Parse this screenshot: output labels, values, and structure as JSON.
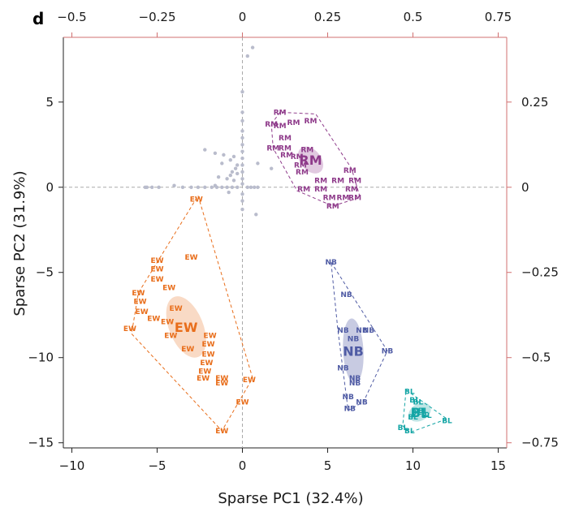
{
  "panel_label": "d",
  "chart_data": {
    "type": "scatter",
    "xlabel": "Sparse PC1 (32.4%)",
    "ylabel": "Sparse PC2 (31.9%)",
    "xlim": [
      -10.5,
      15.5
    ],
    "ylim": [
      -15.3,
      8.8
    ],
    "x_ticks": [
      -10,
      -5,
      0,
      5,
      10,
      15
    ],
    "y_ticks": [
      -15,
      -10,
      -5,
      0,
      5
    ],
    "x_tick_labels": [
      "−10",
      "−5",
      "0",
      "5",
      "10",
      "15"
    ],
    "y_tick_labels": [
      "−15",
      "−10",
      "−5",
      "0",
      "5"
    ],
    "top_axis": {
      "ticks": [
        -0.5,
        -0.25,
        0,
        0.25,
        0.5,
        0.75
      ],
      "tick_labels": [
        "−0.5",
        "−0.25",
        "0",
        "0.25",
        "0.5",
        "0.75"
      ],
      "scale": 20
    },
    "right_axis": {
      "ticks": [
        0.25,
        0,
        -0.25,
        -0.5,
        -0.75
      ],
      "tick_labels": [
        "0.25",
        "0",
        "−0.25",
        "−0.5",
        "−0.75"
      ],
      "scale": 20
    },
    "reference_lines": {
      "x": 0,
      "y": 0
    },
    "grid": false,
    "loadings": {
      "color": "#b9bccc",
      "points": [
        [
          0.6,
          8.2
        ],
        [
          0.3,
          7.7
        ],
        [
          0,
          5.6
        ],
        [
          0,
          4.4
        ],
        [
          0,
          3.9
        ],
        [
          0,
          3.3
        ],
        [
          0,
          2.9
        ],
        [
          0,
          2.5
        ],
        [
          0,
          2.1
        ],
        [
          0,
          1.7
        ],
        [
          0,
          1.3
        ],
        [
          0,
          0.9
        ],
        [
          0,
          0.5
        ],
        [
          0,
          0.2
        ],
        [
          0,
          -0.4
        ],
        [
          0,
          -0.8
        ],
        [
          0,
          -1.3
        ],
        [
          -2.2,
          2.2
        ],
        [
          -1.6,
          2.0
        ],
        [
          -1.1,
          1.9
        ],
        [
          -0.7,
          1.6
        ],
        [
          -0.5,
          1.8
        ],
        [
          -0.3,
          1.3
        ],
        [
          -0.4,
          1.1
        ],
        [
          -1.2,
          1.4
        ],
        [
          -0.6,
          0.9
        ],
        [
          -0.3,
          0.8
        ],
        [
          -1.4,
          0.6
        ],
        [
          -0.9,
          0.5
        ],
        [
          -0.7,
          0.7
        ],
        [
          -0.5,
          0.4
        ],
        [
          0.9,
          1.4
        ],
        [
          1.7,
          1.1
        ],
        [
          0.8,
          -1.6
        ],
        [
          -5.6,
          0
        ],
        [
          -5.3,
          0
        ],
        [
          -5.7,
          0
        ],
        [
          -4.9,
          0
        ],
        [
          -3.5,
          0
        ],
        [
          -3.0,
          0
        ],
        [
          -2.6,
          0
        ],
        [
          -2.2,
          0
        ],
        [
          -1.8,
          0
        ],
        [
          -1.5,
          0
        ],
        [
          -1.2,
          0
        ],
        [
          -0.9,
          0
        ],
        [
          -0.6,
          0
        ],
        [
          -0.3,
          0
        ],
        [
          0.3,
          0
        ],
        [
          0.5,
          0
        ],
        [
          0.7,
          0
        ],
        [
          0.9,
          0
        ],
        [
          -0.8,
          -0.3
        ],
        [
          -1.6,
          0.1
        ],
        [
          -4.0,
          0.1
        ]
      ]
    },
    "series": [
      {
        "name": "RM",
        "color": "#8e3a8a",
        "label": "RM",
        "centroid": [
          4.0,
          1.6
        ],
        "ellipse": {
          "rx": 0.6,
          "ry": 0.9,
          "angle": -40,
          "color": "#d7b7d6"
        },
        "points": [
          [
            2.2,
            4.4
          ],
          [
            1.7,
            3.7
          ],
          [
            2.2,
            3.6
          ],
          [
            3.0,
            3.8
          ],
          [
            4.0,
            3.9
          ],
          [
            2.5,
            2.9
          ],
          [
            1.8,
            2.3
          ],
          [
            2.5,
            2.3
          ],
          [
            3.8,
            2.2
          ],
          [
            2.6,
            1.9
          ],
          [
            3.2,
            1.8
          ],
          [
            3.4,
            1.3
          ],
          [
            6.3,
            1.0
          ],
          [
            3.5,
            0.9
          ],
          [
            4.6,
            0.4
          ],
          [
            5.6,
            0.4
          ],
          [
            6.6,
            0.4
          ],
          [
            3.6,
            -0.1
          ],
          [
            4.6,
            -0.1
          ],
          [
            6.4,
            -0.1
          ],
          [
            5.1,
            -0.6
          ],
          [
            5.9,
            -0.6
          ],
          [
            6.6,
            -0.6
          ],
          [
            5.3,
            -1.1
          ]
        ],
        "hull": [
          [
            1.7,
            3.7
          ],
          [
            2.2,
            4.4
          ],
          [
            4.3,
            4.3
          ],
          [
            6.4,
            1.1
          ],
          [
            6.9,
            -0.6
          ],
          [
            5.3,
            -1.1
          ],
          [
            3.2,
            -0.2
          ],
          [
            1.8,
            2.3
          ]
        ]
      },
      {
        "name": "EW",
        "color": "#e86d1a",
        "label": "EW",
        "centroid": [
          -3.3,
          -8.2
        ],
        "ellipse": {
          "rx": 1.0,
          "ry": 1.9,
          "angle": -22,
          "color": "#f7cdb2"
        },
        "points": [
          [
            -2.7,
            -0.7
          ],
          [
            -3.0,
            -4.1
          ],
          [
            -5.0,
            -4.3
          ],
          [
            -5.0,
            -4.8
          ],
          [
            -5.0,
            -5.4
          ],
          [
            -4.3,
            -5.9
          ],
          [
            -6.1,
            -6.2
          ],
          [
            -6.0,
            -6.7
          ],
          [
            -3.9,
            -7.1
          ],
          [
            -5.9,
            -7.3
          ],
          [
            -5.2,
            -7.7
          ],
          [
            -4.4,
            -7.9
          ],
          [
            -6.6,
            -8.3
          ],
          [
            -4.2,
            -8.7
          ],
          [
            -1.9,
            -8.7
          ],
          [
            -3.2,
            -9.5
          ],
          [
            -2.0,
            -9.2
          ],
          [
            -2.0,
            -9.8
          ],
          [
            -2.1,
            -10.3
          ],
          [
            -2.2,
            -10.8
          ],
          [
            -2.3,
            -11.2
          ],
          [
            -1.2,
            -11.2
          ],
          [
            -1.2,
            -11.5
          ],
          [
            0.4,
            -11.3
          ],
          [
            0,
            -12.6
          ],
          [
            -1.2,
            -14.3
          ]
        ],
        "hull": [
          [
            -2.6,
            -0.5
          ],
          [
            0.6,
            -11.2
          ],
          [
            -1.2,
            -14.3
          ],
          [
            -6.5,
            -8.6
          ],
          [
            -6.1,
            -6.2
          ]
        ]
      },
      {
        "name": "NB",
        "color": "#4f5ba4",
        "label": "NB",
        "centroid": [
          6.5,
          -9.6
        ],
        "ellipse": {
          "rx": 0.6,
          "ry": 1.9,
          "angle": -3,
          "color": "#b6bad8"
        },
        "points": [
          [
            5.2,
            -4.4
          ],
          [
            6.1,
            -6.3
          ],
          [
            5.9,
            -8.4
          ],
          [
            7.0,
            -8.4
          ],
          [
            7.4,
            -8.4
          ],
          [
            6.5,
            -8.9
          ],
          [
            8.5,
            -9.6
          ],
          [
            5.9,
            -10.6
          ],
          [
            6.6,
            -11.2
          ],
          [
            6.6,
            -11.5
          ],
          [
            6.2,
            -12.3
          ],
          [
            7.0,
            -12.6
          ],
          [
            6.3,
            -13.0
          ]
        ],
        "hull": [
          [
            5.2,
            -4.4
          ],
          [
            8.5,
            -9.6
          ],
          [
            7.1,
            -12.6
          ],
          [
            6.2,
            -13.1
          ],
          [
            5.6,
            -8.4
          ]
        ]
      },
      {
        "name": "BL",
        "color": "#14a5a5",
        "label": "BL",
        "centroid": [
          10.4,
          -13.2
        ],
        "ellipse": {
          "rx": 0.7,
          "ry": 0.5,
          "angle": -30,
          "color": "#a8dcdc"
        },
        "points": [
          [
            9.8,
            -12.0
          ],
          [
            10.1,
            -12.5
          ],
          [
            10.3,
            -12.6
          ],
          [
            10.6,
            -13.1
          ],
          [
            10.8,
            -13.4
          ],
          [
            10.2,
            -13.2
          ],
          [
            10.0,
            -13.5
          ],
          [
            12.0,
            -13.7
          ],
          [
            9.4,
            -14.1
          ],
          [
            9.8,
            -14.3
          ]
        ],
        "hull": [
          [
            9.6,
            -11.9
          ],
          [
            12.0,
            -13.6
          ],
          [
            9.8,
            -14.4
          ],
          [
            9.4,
            -14.0
          ]
        ]
      }
    ]
  }
}
